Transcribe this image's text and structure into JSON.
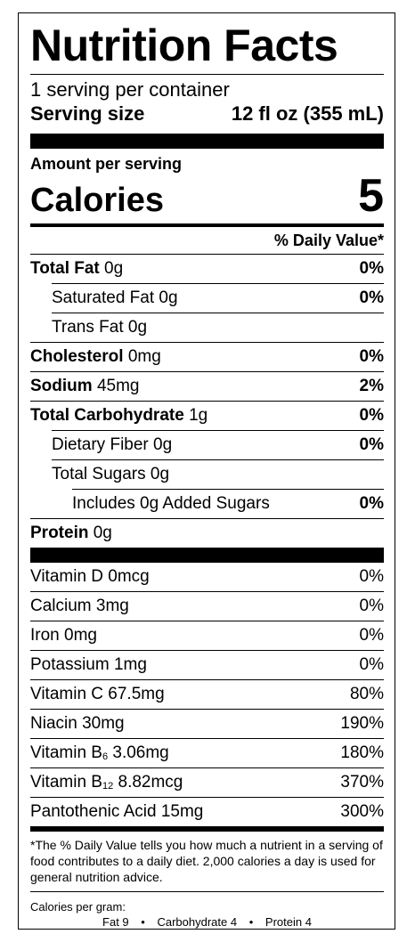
{
  "title": "Nutrition Facts",
  "servings_per_container": "1 serving per container",
  "serving_size": {
    "label": "Serving size",
    "value": "12 fl oz (355 mL)"
  },
  "amount_per_serving": "Amount per serving",
  "calories": {
    "label": "Calories",
    "value": "5"
  },
  "daily_value_header": "% Daily Value*",
  "nutrients": {
    "total_fat": {
      "label": "Total Fat",
      "amount": "0g",
      "dv": "0%"
    },
    "saturated_fat": {
      "label": "Saturated Fat",
      "amount": "0g",
      "dv": "0%"
    },
    "trans_fat": {
      "label": "Trans Fat",
      "amount": "0g"
    },
    "cholesterol": {
      "label": "Cholesterol",
      "amount": "0mg",
      "dv": "0%"
    },
    "sodium": {
      "label": "Sodium",
      "amount": "45mg",
      "dv": "2%"
    },
    "total_carbohydrate": {
      "label": "Total Carbohydrate",
      "amount": "1g",
      "dv": "0%"
    },
    "dietary_fiber": {
      "label": "Dietary Fiber",
      "amount": "0g",
      "dv": "0%"
    },
    "total_sugars": {
      "label": "Total Sugars",
      "amount": "0g"
    },
    "added_sugars": {
      "label": "Includes 0g Added Sugars",
      "dv": "0%"
    },
    "protein": {
      "label": "Protein",
      "amount": "0g"
    }
  },
  "vitamins": {
    "vitamin_d": {
      "label": "Vitamin D 0mcg",
      "dv": "0%"
    },
    "calcium": {
      "label": "Calcium 3mg",
      "dv": "0%"
    },
    "iron": {
      "label": "Iron 0mg",
      "dv": "0%"
    },
    "potassium": {
      "label": "Potassium 1mg",
      "dv": "0%"
    },
    "vitamin_c": {
      "label": "Vitamin C 67.5mg",
      "dv": "80%"
    },
    "niacin": {
      "label": "Niacin 30mg",
      "dv": "190%"
    },
    "vitamin_b6": {
      "prefix": "Vitamin B",
      "sub": "6",
      "amount": "3.06mg",
      "dv": "180%"
    },
    "vitamin_b12": {
      "prefix": "Vitamin B",
      "sub": "12",
      "amount": "8.82mcg",
      "dv": "370%"
    },
    "pantothenic_acid": {
      "label": "Pantothenic Acid 15mg",
      "dv": "300%"
    }
  },
  "footnote": "*The % Daily Value tells you how much a nutrient in a serving of food contributes to a daily diet. 2,000 calories a day is used for general nutrition advice.",
  "calories_per_gram": {
    "label": "Calories per gram:",
    "fat": "Fat 9",
    "carbohydrate": "Carbohydrate 4",
    "protein": "Protein 4",
    "separator": "•"
  }
}
